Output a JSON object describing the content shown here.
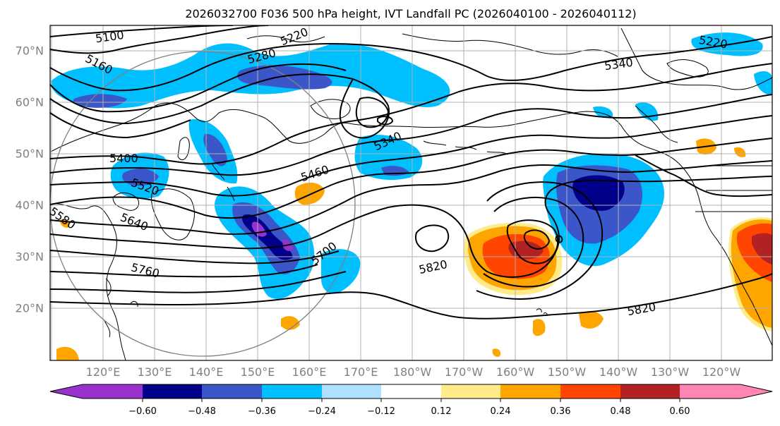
{
  "title": "2026032700 F036 500 hPa height, IVT Landfall PC (2026040100 - 2026040112)",
  "latitude_labels": [
    "70°N",
    "60°N",
    "50°N",
    "40°N",
    "30°N",
    "20°N"
  ],
  "longitude_labels": [
    "120°E",
    "130°E",
    "140°E",
    "150°E",
    "160°E",
    "170°E",
    "180°W",
    "170°W",
    "160°W",
    "150°W",
    "140°W",
    "130°W",
    "120°W"
  ],
  "contour_labels": [
    "5100",
    "5160",
    "5220",
    "5280",
    "5340",
    "5340",
    "5220",
    "5400",
    "5460",
    "5520",
    "5580",
    "5640",
    "5700",
    "5760",
    "5820",
    "5820"
  ],
  "colorbar": {
    "tick_labels": [
      "−0.60",
      "−0.48",
      "−0.36",
      "−0.24",
      "−0.12",
      "0.12",
      "0.24",
      "0.36",
      "0.48",
      "0.60"
    ],
    "colors": [
      "#9932CC",
      "#00008B",
      "#3A56C8",
      "#00BFFF",
      "#B0E0FF",
      "#FFFFFF",
      "#FFEB8A",
      "#FFA500",
      "#FF4500",
      "#B22222",
      "#FF85B5"
    ]
  },
  "colors": {
    "height_contours": "#000000",
    "coastlines": "#000000",
    "gridlines": "#B0B0B0",
    "range_ring": "#808080"
  }
}
